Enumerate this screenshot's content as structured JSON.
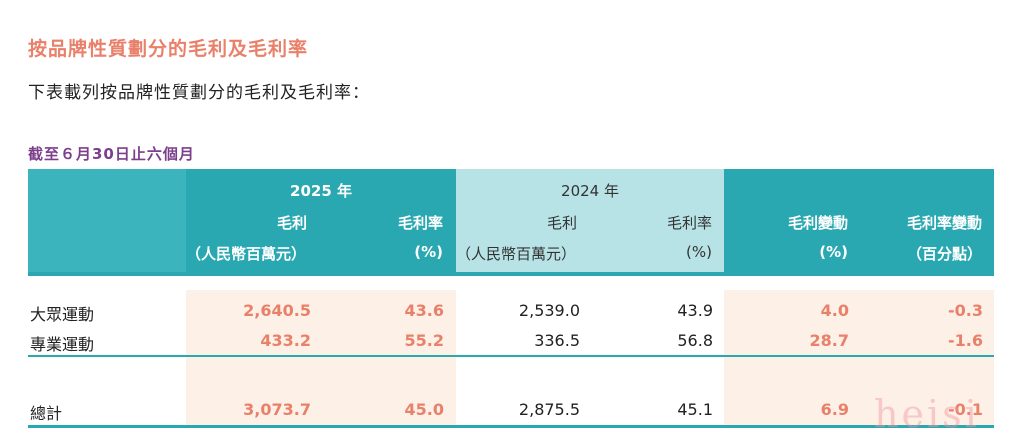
{
  "heading": "按品牌性質劃分的毛利及毛利率",
  "intro": "下表載列按品牌性質劃分的毛利及毛利率：",
  "period": "截至６月30日止六個月",
  "header": {
    "year_2025": "2025 年",
    "year_2024": "2024 年",
    "col_gp_2025": "毛利",
    "col_gp_2025_unit": "（人民幣百萬元）",
    "col_gm_2025": "毛利率",
    "col_gm_2025_unit": "(%)",
    "col_gp_2024": "毛利",
    "col_gp_2024_unit": "（人民幣百萬元）",
    "col_gm_2024": "毛利率",
    "col_gm_2024_unit": "(%)",
    "col_gp_change": "毛利變動",
    "col_gp_change_unit": "(%)",
    "col_gm_change": "毛利率變動",
    "col_gm_change_unit": "（百分點）"
  },
  "rows": [
    {
      "label": "大眾運動",
      "gp_2025": "2,640.5",
      "gm_2025": "43.6",
      "gp_2024": "2,539.0",
      "gm_2024": "43.9",
      "gp_change": "4.0",
      "gm_change": "-0.3"
    },
    {
      "label": "專業運動",
      "gp_2025": "433.2",
      "gm_2025": "55.2",
      "gp_2024": "336.5",
      "gm_2024": "56.8",
      "gp_change": "28.7",
      "gm_change": "-1.6"
    }
  ],
  "total": {
    "label": "總計",
    "gp_2025": "3,073.7",
    "gm_2025": "45.0",
    "gp_2024": "2,875.5",
    "gm_2024": "45.1",
    "gp_change": "6.9",
    "gm_change": "-0.1"
  },
  "watermark": "heisi",
  "colors": {
    "heading": "#e9806a",
    "period": "#7c3f8c",
    "teal": "#2aa8b1",
    "light_teal": "#b8e3e6",
    "shade": "#fdf0e6"
  }
}
